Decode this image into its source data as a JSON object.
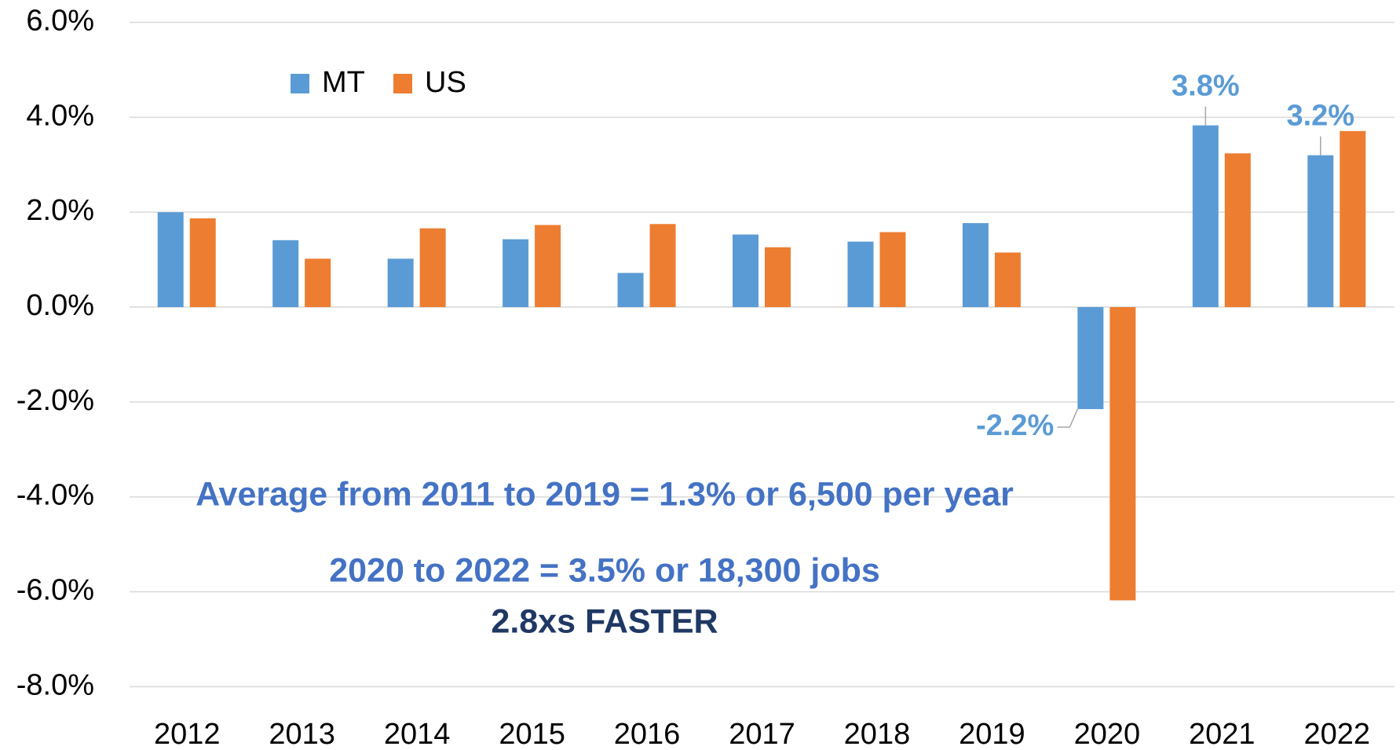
{
  "chart_data": {
    "type": "bar",
    "categories": [
      "2012",
      "2013",
      "2014",
      "2015",
      "2016",
      "2017",
      "2018",
      "2019",
      "2020",
      "2021",
      "2022"
    ],
    "series": [
      {
        "name": "MT",
        "color": "#5b9bd5",
        "values": [
          2.0,
          1.41,
          1.02,
          1.43,
          0.72,
          1.53,
          1.38,
          1.77,
          -2.15,
          3.83,
          3.2
        ],
        "value_labels": [
          null,
          null,
          null,
          null,
          null,
          null,
          null,
          null,
          "-2.2%",
          "3.8%",
          "3.2%"
        ]
      },
      {
        "name": "US",
        "color": "#ed7d31",
        "values": [
          1.87,
          1.02,
          1.66,
          1.73,
          1.75,
          1.26,
          1.58,
          1.15,
          -6.18,
          3.24,
          3.71
        ]
      }
    ],
    "ylim": [
      -8,
      6
    ],
    "yticks": [
      {
        "value": -8,
        "label": "-8.0%"
      },
      {
        "value": -6,
        "label": "-6.0%"
      },
      {
        "value": -4,
        "label": "-4.0%"
      },
      {
        "value": -2,
        "label": "-2.0%"
      },
      {
        "value": 0,
        "label": "0.0%"
      },
      {
        "value": 2,
        "label": "2.0%"
      },
      {
        "value": 4,
        "label": "4.0%"
      },
      {
        "value": 6,
        "label": "6.0%"
      }
    ],
    "grid": true,
    "legend": "upper left",
    "annotations": [
      {
        "text": "Average from 2011 to 2019 = 1.3% or 6,500 per year",
        "color": "#4472c4"
      },
      {
        "text": "2020 to 2022 = 3.5% or 18,300 jobs",
        "color": "#4472c4"
      },
      {
        "text": "2.8xs FASTER",
        "color": "#1f3864"
      }
    ]
  }
}
